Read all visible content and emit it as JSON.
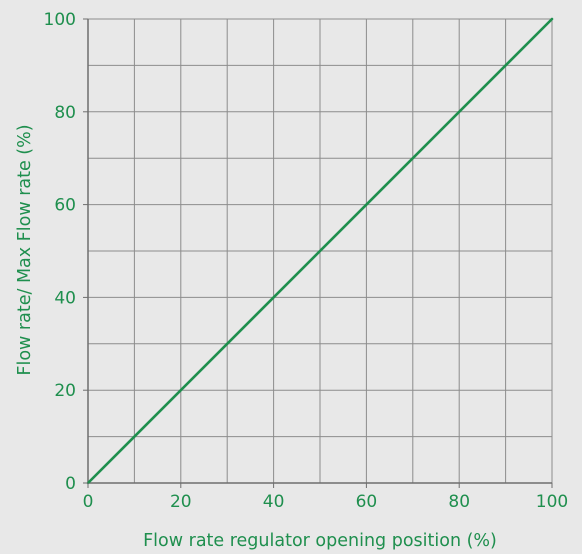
{
  "chart_data": {
    "type": "line",
    "title": "",
    "xlabel": "Flow rate regulator opening position (%)",
    "ylabel": "Flow rate/ Max Flow rate (%)",
    "xlim": [
      0,
      100
    ],
    "ylim": [
      0,
      100
    ],
    "x_ticks": [
      0,
      20,
      40,
      60,
      80,
      100
    ],
    "y_ticks": [
      0,
      20,
      40,
      60,
      80,
      100
    ],
    "x_tick_labels": [
      "0",
      "20",
      "40",
      "60",
      "80",
      "100"
    ],
    "y_tick_labels": [
      "0",
      "20",
      "40",
      "60",
      "80",
      "100"
    ],
    "grid": true,
    "grid_step": 10,
    "series": [
      {
        "x": [
          0,
          100
        ],
        "values": [
          0,
          100
        ],
        "color": "#1f8f4e"
      }
    ]
  },
  "colors": {
    "background": "#e8e8e8",
    "grid": "#8c8c8c",
    "axis": "#6e6e6e",
    "text": "#1f8f4e",
    "line": "#1f8f4e"
  }
}
